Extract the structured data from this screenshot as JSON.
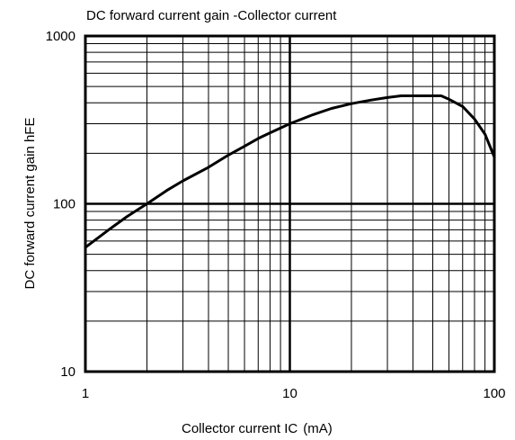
{
  "chart_data": {
    "type": "line",
    "title": "DC forward current gain -Collector current",
    "xlabel": "Collector current  I",
    "xlabel_sub": "C",
    "xlabel_unit": "(mA)",
    "ylabel": "DC  forward current gain   hFE",
    "x_scale": "log",
    "y_scale": "log",
    "xlim": [
      1,
      100
    ],
    "ylim": [
      10,
      1000
    ],
    "grid": true,
    "x_ticks": [
      {
        "value": 1,
        "label": "1"
      },
      {
        "value": 10,
        "label": "10"
      },
      {
        "value": 100,
        "label": "100"
      }
    ],
    "y_ticks": [
      {
        "value": 10,
        "label": "10"
      },
      {
        "value": 100,
        "label": "100"
      },
      {
        "value": 1000,
        "label": "1000"
      }
    ],
    "series": [
      {
        "x": [
          1,
          1.3,
          1.6,
          2,
          2.5,
          3,
          4,
          5,
          6,
          7,
          8,
          10,
          13,
          16,
          20,
          25,
          30,
          35,
          40,
          50,
          55,
          60,
          70,
          80,
          90,
          100
        ],
        "y": [
          55,
          70,
          84,
          100,
          120,
          137,
          165,
          195,
          220,
          245,
          265,
          300,
          340,
          370,
          395,
          415,
          430,
          440,
          440,
          440,
          440,
          420,
          380,
          320,
          260,
          190
        ]
      }
    ]
  }
}
